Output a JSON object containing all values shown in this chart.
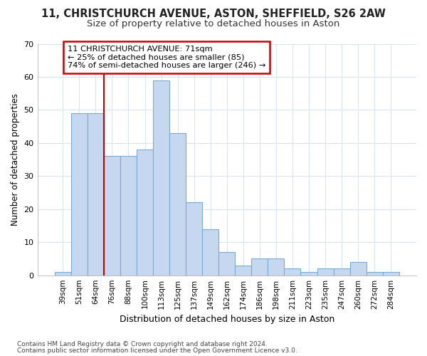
{
  "title_line1": "11, CHRISTCHURCH AVENUE, ASTON, SHEFFIELD, S26 2AW",
  "title_line2": "Size of property relative to detached houses in Aston",
  "xlabel": "Distribution of detached houses by size in Aston",
  "ylabel": "Number of detached properties",
  "categories": [
    "39sqm",
    "51sqm",
    "64sqm",
    "76sqm",
    "88sqm",
    "100sqm",
    "113sqm",
    "125sqm",
    "137sqm",
    "149sqm",
    "162sqm",
    "174sqm",
    "186sqm",
    "198sqm",
    "211sqm",
    "223sqm",
    "235sqm",
    "247sqm",
    "260sqm",
    "272sqm",
    "284sqm"
  ],
  "values": [
    1,
    49,
    49,
    36,
    36,
    38,
    59,
    43,
    22,
    14,
    7,
    3,
    5,
    5,
    2,
    1,
    2,
    2,
    4,
    1,
    1
  ],
  "bar_color": "#c5d8f0",
  "bar_edge_color": "#7aaad4",
  "vline_color": "#cc0000",
  "vline_pos": 2.5,
  "annotation_text": "11 CHRISTCHURCH AVENUE: 71sqm\n← 25% of detached houses are smaller (85)\n74% of semi-detached houses are larger (246) →",
  "ylim": [
    0,
    70
  ],
  "yticks": [
    0,
    10,
    20,
    30,
    40,
    50,
    60,
    70
  ],
  "plot_bg": "#ffffff",
  "fig_bg": "#ffffff",
  "grid_color": "#d8e4f0",
  "footnote1": "Contains HM Land Registry data © Crown copyright and database right 2024.",
  "footnote2": "Contains public sector information licensed under the Open Government Licence v3.0."
}
